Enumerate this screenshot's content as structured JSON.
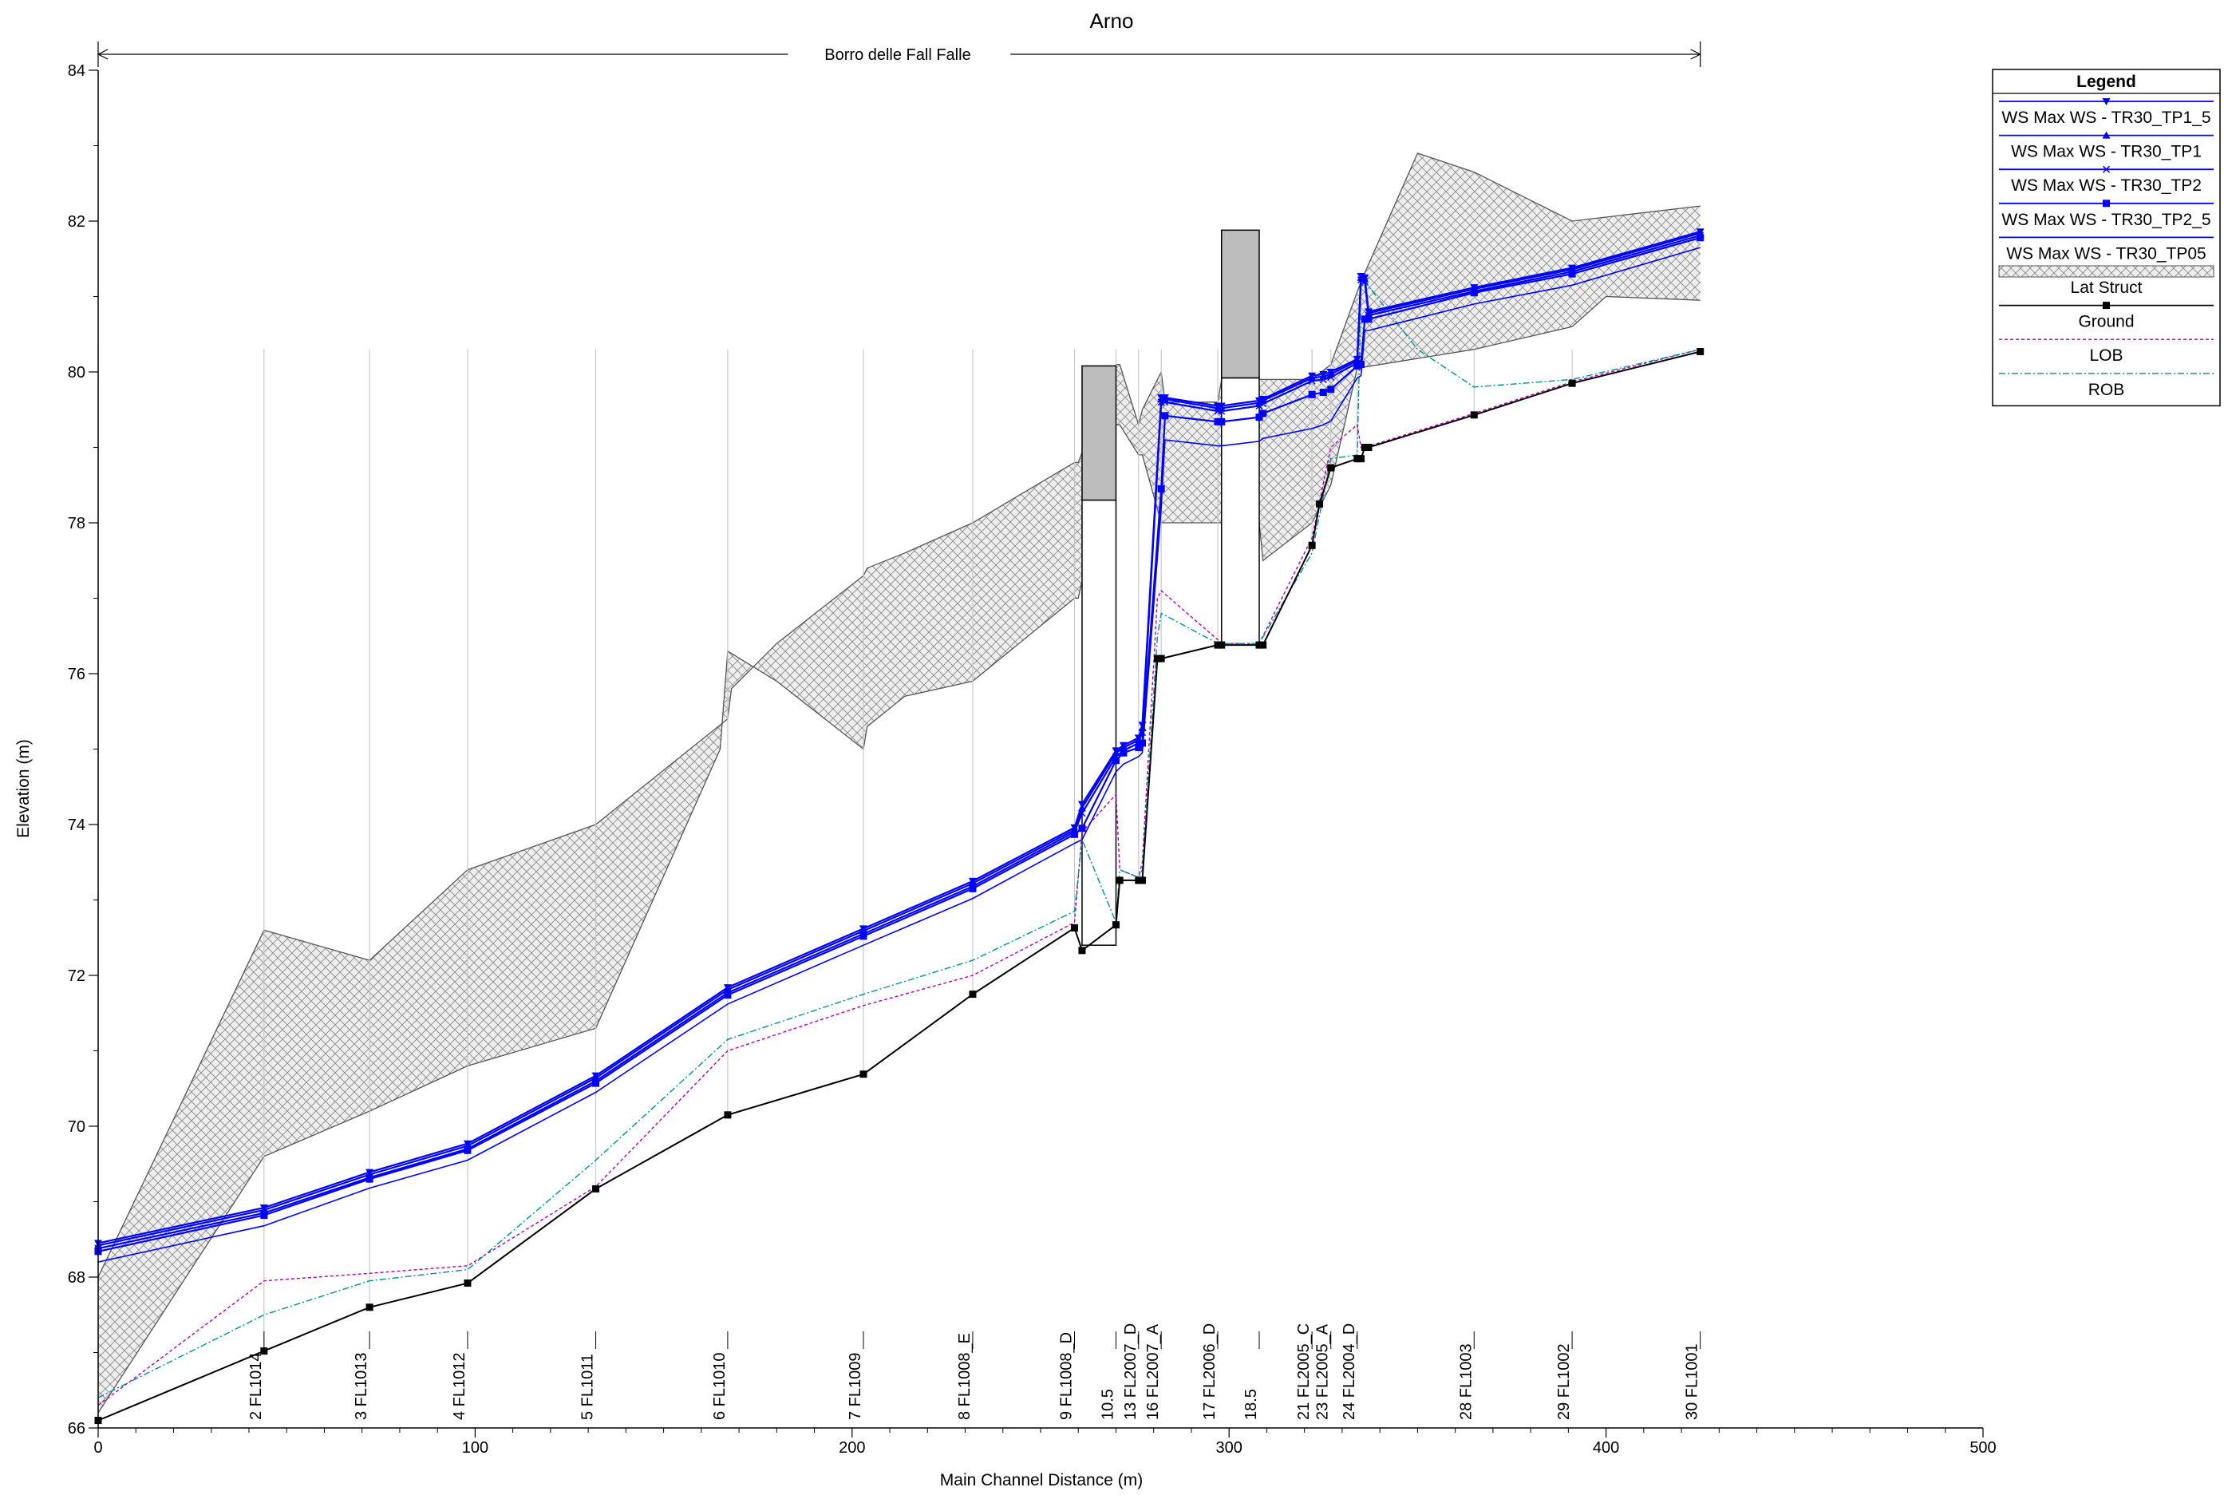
{
  "chart_data": {
    "type": "line",
    "title": "Arno",
    "reach_label": "Borro delle Fall Falle",
    "xlabel": "Main Channel Distance (m)",
    "ylabel": "Elevation (m)",
    "xlim": [
      0,
      500
    ],
    "ylim": [
      66,
      84
    ],
    "x_ticks": [
      0,
      100,
      200,
      300,
      400,
      500
    ],
    "y_ticks": [
      66,
      68,
      70,
      72,
      74,
      76,
      78,
      80,
      82,
      84
    ],
    "grid": false,
    "legend_position": "right",
    "legend_title": "Legend",
    "colors": {
      "ws": "#0000ff",
      "ground": "#000000",
      "lob": "#b000b0",
      "rob": "#009090",
      "lat": "#555555",
      "culvert": "#bdbdbd",
      "station_line": "#c8c8c8"
    },
    "stations": [
      {
        "x": 0,
        "label": ""
      },
      {
        "x": 44,
        "label": "2 FL1014"
      },
      {
        "x": 72,
        "label": "3 FL1013"
      },
      {
        "x": 98,
        "label": "4 FL1012"
      },
      {
        "x": 132,
        "label": "5 FL1011"
      },
      {
        "x": 167,
        "label": "6 FL1010"
      },
      {
        "x": 203,
        "label": "7 FL1009"
      },
      {
        "x": 232,
        "label": "8 FL1008_E"
      },
      {
        "x": 259,
        "label": "9 FL1008_D"
      },
      {
        "x": 270,
        "label": "10.5"
      },
      {
        "x": 276,
        "label": "13 FL2007_D"
      },
      {
        "x": 282,
        "label": "16 FL2007_A"
      },
      {
        "x": 297,
        "label": "17 FL2006_D"
      },
      {
        "x": 308,
        "label": "18.5"
      },
      {
        "x": 322,
        "label": "21 FL2005_C"
      },
      {
        "x": 327,
        "label": "23 FL2005_A"
      },
      {
        "x": 334,
        "label": "24 FL2004_D"
      },
      {
        "x": 365,
        "label": "28 FL1003"
      },
      {
        "x": 391,
        "label": "29 FL1002"
      },
      {
        "x": 425,
        "label": "30 FL1001"
      }
    ],
    "series": [
      {
        "name": "WS  Max WS - TR30_TP1_5",
        "key": "ws1",
        "marker": "tri-down",
        "x": [
          0,
          44,
          72,
          98,
          132,
          167,
          203,
          232,
          259,
          261,
          270,
          272,
          276,
          277,
          282,
          283,
          297,
          298,
          308,
          309,
          322,
          325,
          327,
          334,
          335,
          336,
          337,
          365,
          391,
          425
        ],
        "y": [
          68.45,
          68.92,
          69.39,
          69.77,
          70.67,
          71.84,
          72.62,
          73.25,
          73.96,
          74.27,
          74.98,
          75.05,
          75.15,
          75.32,
          79.66,
          79.66,
          79.55,
          79.55,
          79.62,
          79.64,
          79.95,
          79.97,
          80.0,
          80.17,
          81.27,
          81.25,
          80.8,
          81.12,
          81.38,
          81.86
        ]
      },
      {
        "name": "WS  Max WS - TR30_TP1",
        "key": "ws2",
        "marker": "tri-up",
        "x": [
          0,
          44,
          72,
          98,
          132,
          167,
          203,
          232,
          259,
          261,
          270,
          272,
          276,
          277,
          282,
          283,
          297,
          298,
          308,
          309,
          322,
          325,
          327,
          334,
          335,
          336,
          337,
          365,
          391,
          425
        ],
        "y": [
          68.42,
          68.89,
          69.36,
          69.74,
          70.64,
          71.81,
          72.59,
          73.22,
          73.93,
          74.22,
          74.95,
          75.02,
          75.12,
          75.28,
          79.64,
          79.64,
          79.52,
          79.52,
          79.59,
          79.62,
          79.92,
          79.94,
          79.97,
          80.15,
          81.25,
          81.23,
          80.78,
          81.1,
          81.36,
          81.84
        ]
      },
      {
        "name": "WS  Max WS - TR30_TP2",
        "key": "ws3",
        "marker": "x",
        "x": [
          0,
          44,
          72,
          98,
          132,
          167,
          203,
          232,
          259,
          261,
          270,
          272,
          276,
          277,
          282,
          283,
          297,
          298,
          308,
          309,
          322,
          325,
          327,
          334,
          335,
          336,
          337,
          365,
          391,
          425
        ],
        "y": [
          68.38,
          68.85,
          69.32,
          69.7,
          70.6,
          71.77,
          72.55,
          73.18,
          73.9,
          74.15,
          74.9,
          74.98,
          75.08,
          75.22,
          79.6,
          79.6,
          79.48,
          79.48,
          79.55,
          79.58,
          79.88,
          79.9,
          79.93,
          80.12,
          81.22,
          81.2,
          80.75,
          81.07,
          81.33,
          81.81
        ]
      },
      {
        "name": "WS  Max WS - TR30_TP2_5",
        "key": "ws4",
        "marker": "square",
        "x": [
          0,
          44,
          72,
          98,
          132,
          167,
          203,
          232,
          259,
          261,
          270,
          272,
          276,
          277,
          282,
          283,
          297,
          298,
          308,
          309,
          322,
          325,
          327,
          334,
          335,
          336,
          337,
          365,
          391,
          425
        ],
        "y": [
          68.34,
          68.82,
          69.3,
          69.68,
          70.57,
          71.74,
          72.52,
          73.15,
          73.87,
          73.95,
          74.85,
          74.95,
          75.02,
          75.08,
          78.45,
          79.42,
          79.34,
          79.34,
          79.4,
          79.45,
          79.7,
          79.73,
          79.77,
          80.08,
          80.1,
          80.7,
          80.7,
          81.05,
          81.3,
          81.78
        ]
      },
      {
        "name": "WS  Max WS - TR30_TP05",
        "key": "ws5",
        "marker": "none",
        "x": [
          0,
          44,
          72,
          98,
          132,
          167,
          203,
          232,
          259,
          261,
          270,
          272,
          276,
          277,
          282,
          283,
          297,
          298,
          308,
          309,
          322,
          325,
          327,
          334,
          335,
          336,
          337,
          365,
          391,
          425
        ],
        "y": [
          68.2,
          68.68,
          69.18,
          69.55,
          70.45,
          71.62,
          72.4,
          73.02,
          73.75,
          73.8,
          74.7,
          74.8,
          74.9,
          74.95,
          78.2,
          79.1,
          79.02,
          79.02,
          79.08,
          79.12,
          79.25,
          79.3,
          79.35,
          79.92,
          79.95,
          80.55,
          80.55,
          80.9,
          81.15,
          81.65
        ]
      },
      {
        "name": "Lat Struct",
        "key": "lat",
        "marker": "none",
        "upper_x": [
          0,
          44,
          72,
          98,
          132,
          167,
          168,
          180,
          203,
          204,
          214,
          232,
          259,
          260,
          270,
          271,
          276,
          277,
          282,
          283,
          297,
          298,
          308,
          309,
          322,
          327,
          335,
          350,
          365,
          391,
          425
        ],
        "upper_y": [
          68.0,
          72.6,
          72.2,
          73.4,
          74.0,
          75.4,
          75.8,
          76.4,
          77.3,
          77.4,
          77.6,
          78.0,
          78.8,
          78.8,
          80.1,
          80.1,
          79.3,
          79.5,
          80.0,
          79.6,
          79.6,
          79.9,
          79.9,
          79.9,
          79.9,
          80.1,
          81.2,
          82.9,
          82.65,
          82.0,
          82.2
        ],
        "lower_x": [
          0,
          44,
          72,
          98,
          132,
          165,
          167,
          180,
          203,
          204,
          214,
          232,
          259,
          260,
          270,
          271,
          276,
          277,
          282,
          297,
          298,
          308,
          309,
          322,
          327,
          334,
          365,
          391,
          400,
          425
        ],
        "lower_y": [
          66.2,
          69.6,
          70.2,
          70.8,
          71.3,
          75.0,
          76.3,
          75.9,
          75.0,
          75.3,
          75.7,
          75.9,
          77.0,
          77.0,
          79.3,
          79.3,
          78.9,
          78.9,
          78.0,
          78.0,
          78.0,
          78.0,
          77.5,
          78.0,
          78.5,
          80.05,
          80.3,
          80.6,
          81.0,
          80.95
        ]
      },
      {
        "name": "Ground",
        "key": "ground",
        "marker": "square",
        "x": [
          0,
          44,
          72,
          98,
          132,
          167,
          203,
          232,
          259,
          261,
          270,
          271,
          276,
          277,
          281,
          282,
          297,
          298,
          308,
          309,
          322,
          324,
          327,
          334,
          335,
          336,
          337,
          365,
          391,
          425
        ],
        "y": [
          66.1,
          67.02,
          67.6,
          67.92,
          69.17,
          70.15,
          70.69,
          71.75,
          72.63,
          72.33,
          72.67,
          73.26,
          73.26,
          73.26,
          76.2,
          76.2,
          76.38,
          76.38,
          76.38,
          76.38,
          77.7,
          78.25,
          78.73,
          78.85,
          78.85,
          79.0,
          79.0,
          79.43,
          79.85,
          80.27
        ]
      },
      {
        "name": "LOB",
        "key": "lob",
        "marker": "none",
        "x": [
          0,
          44,
          72,
          98,
          132,
          167,
          203,
          232,
          259,
          261,
          270,
          271,
          276,
          277,
          281,
          282,
          297,
          298,
          308,
          322,
          327,
          334,
          335,
          336,
          365,
          391,
          425
        ],
        "y": [
          66.3,
          67.95,
          68.05,
          68.15,
          69.2,
          71.0,
          71.6,
          72.0,
          72.7,
          73.9,
          74.4,
          73.4,
          73.3,
          73.5,
          77.0,
          77.1,
          76.45,
          76.4,
          76.4,
          77.8,
          79.0,
          79.3,
          79.0,
          79.0,
          79.45,
          79.87,
          80.3
        ]
      },
      {
        "name": "ROB",
        "key": "rob",
        "marker": "none",
        "x": [
          0,
          44,
          72,
          98,
          132,
          167,
          203,
          232,
          259,
          261,
          270,
          271,
          276,
          277,
          281,
          282,
          297,
          298,
          308,
          322,
          327,
          334,
          335,
          336,
          350,
          365,
          391,
          425
        ],
        "y": [
          66.4,
          67.5,
          67.95,
          68.1,
          69.55,
          71.15,
          71.75,
          72.2,
          72.85,
          73.8,
          72.7,
          73.4,
          73.3,
          73.4,
          76.5,
          76.8,
          76.4,
          76.4,
          76.4,
          77.6,
          78.85,
          78.9,
          81.1,
          81.2,
          80.3,
          79.8,
          79.9,
          80.3
        ]
      }
    ],
    "culverts": [
      {
        "x0": 261,
        "x1": 270,
        "top": 80.08,
        "fill_bottom": 78.3,
        "bottom": 72.4
      },
      {
        "x0": 298,
        "x1": 308,
        "top": 81.88,
        "fill_bottom": 79.92,
        "bottom": 76.38
      }
    ]
  }
}
